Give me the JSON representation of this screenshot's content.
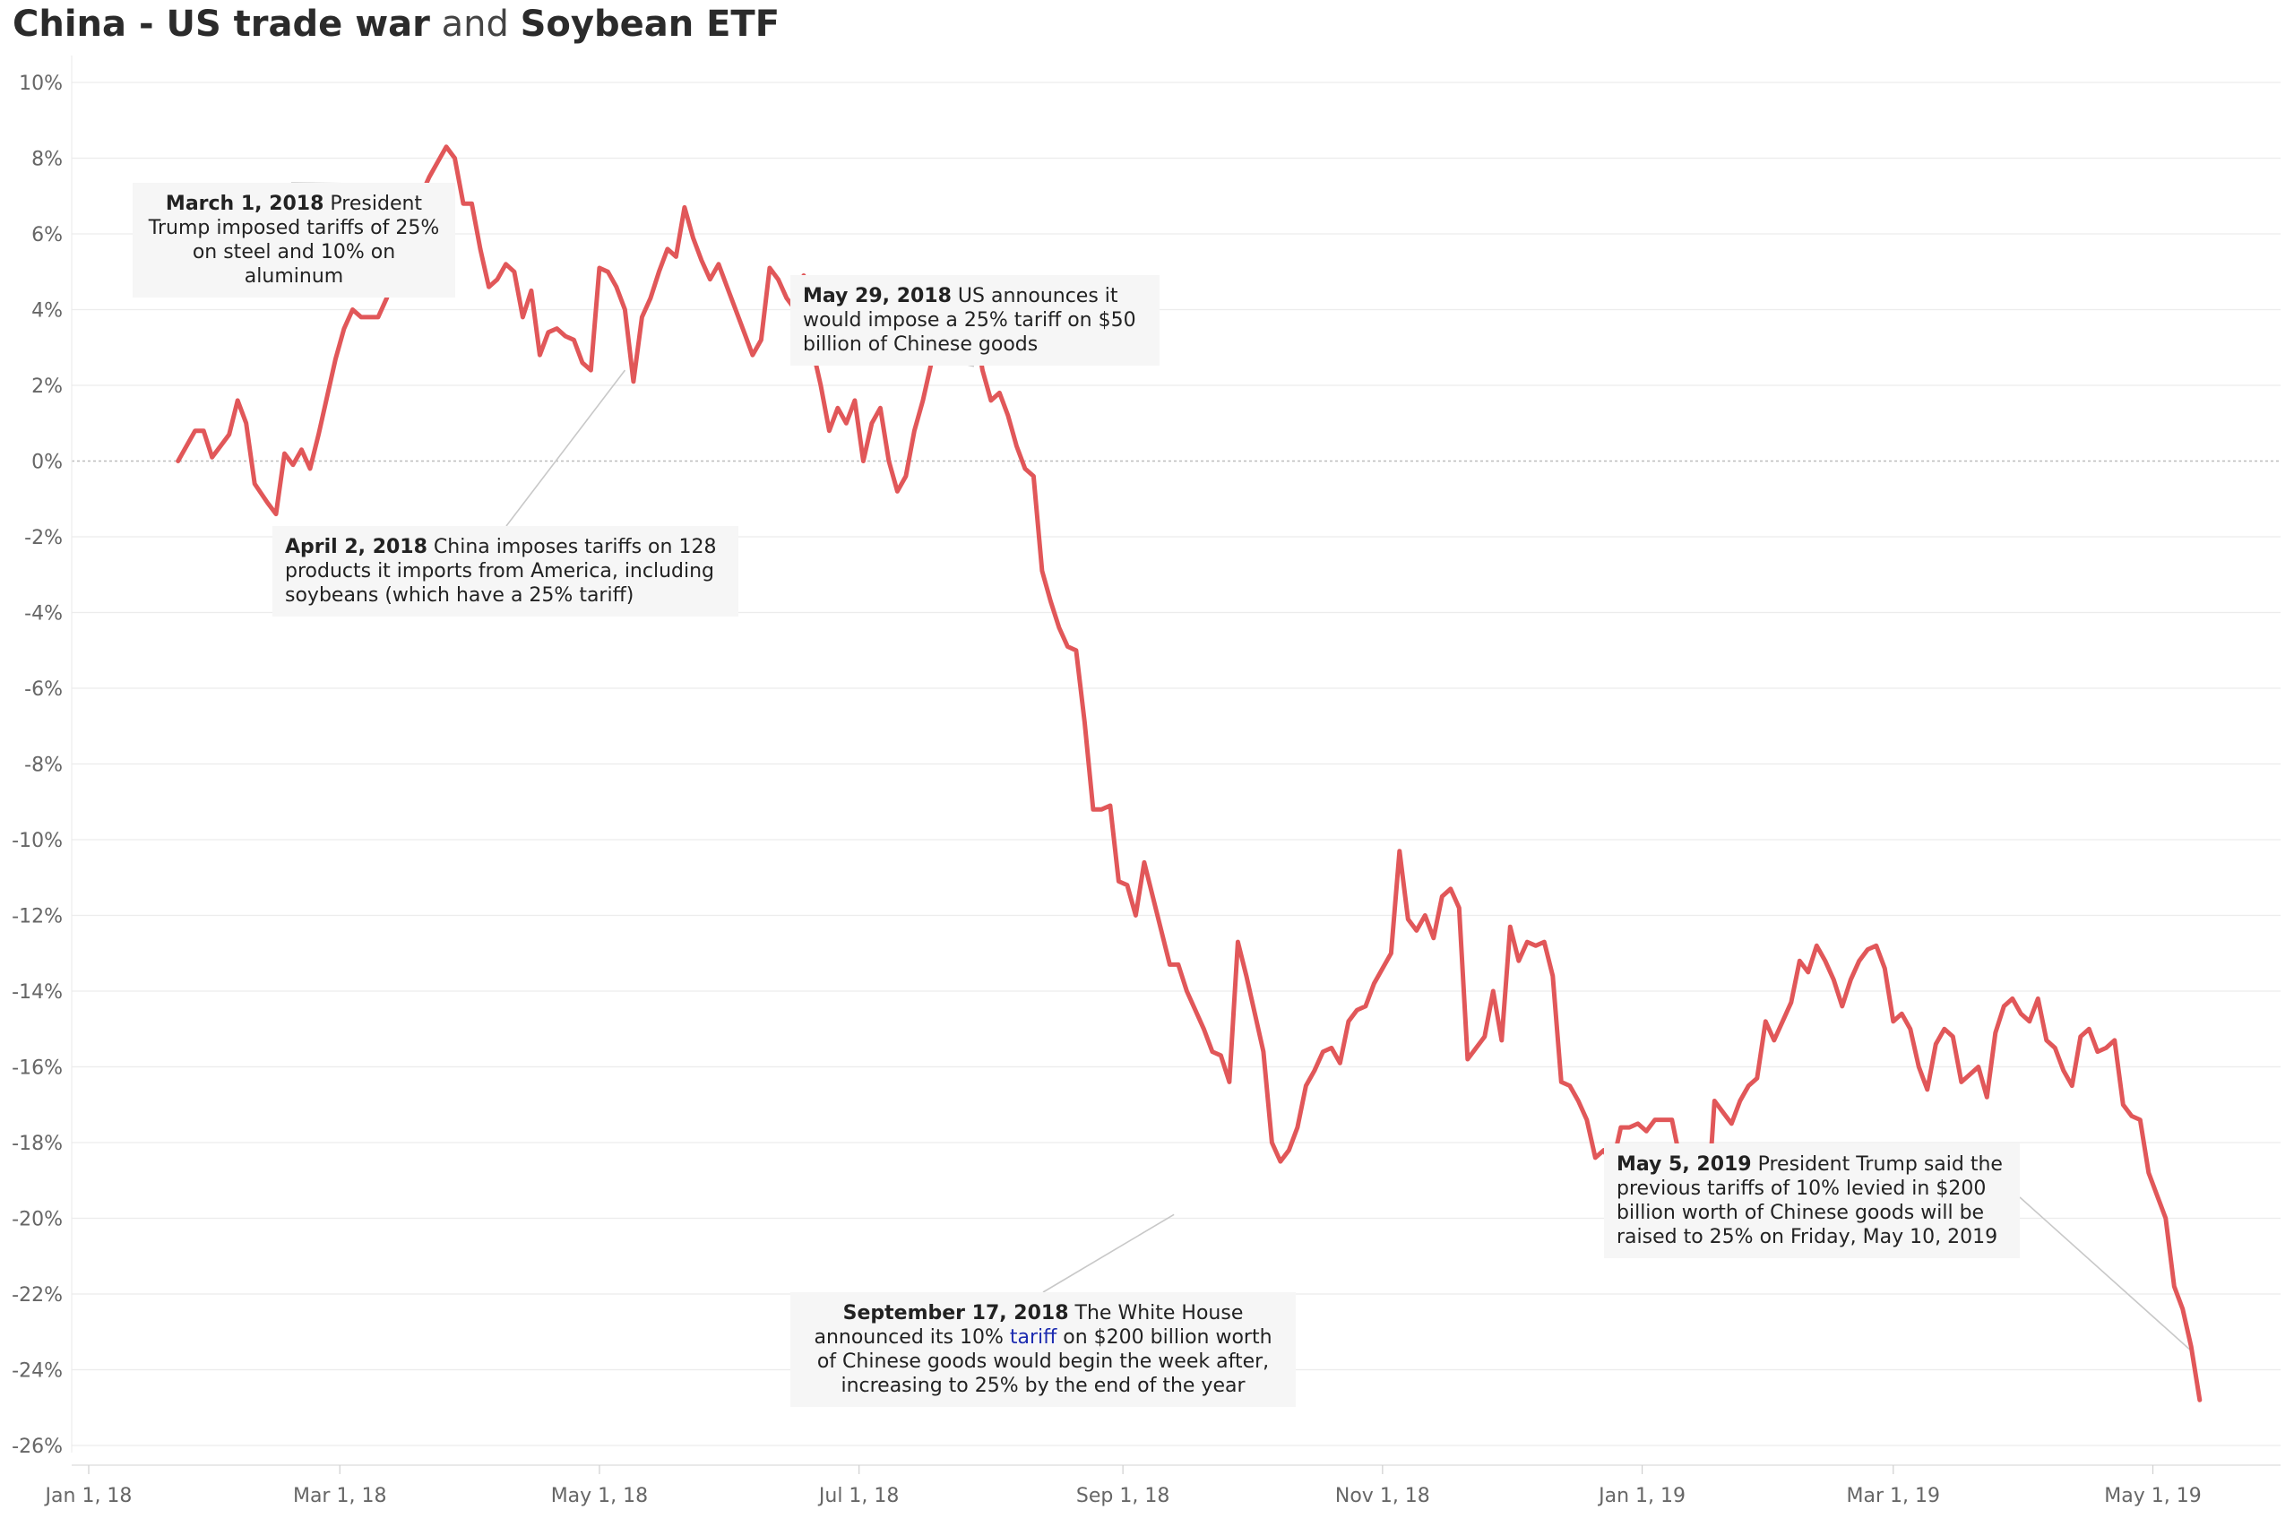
{
  "title": {
    "part1": "China - US trade war",
    "part2": " and ",
    "part3": "Soybean ETF"
  },
  "colors": {
    "line": "#e15759",
    "grid": "#ececec",
    "zero": "#bdbdbd",
    "annotation_bg": "#f6f6f6",
    "leader": "#c8c8c8"
  },
  "annotations": {
    "mar1": {
      "date": "March 1, 2018",
      "text": " President Trump imposed tariffs of 25% on steel and 10% on aluminum"
    },
    "apr2": {
      "date": "April 2, 2018",
      "text": " China imposes tariffs on 128 products it imports from America, including soybeans (which have a 25% tariff)"
    },
    "may29": {
      "date": "May 29, 2018",
      "text": " US announces it would impose a 25% tariff on $50 billion of Chinese goods"
    },
    "sep17": {
      "date": "September 17, 2018",
      "text1": "  The White House announced its 10% ",
      "link": "tariff",
      "text2": " on $200 billion worth of Chinese goods would begin the week after, increasing to 25% by the end of the year"
    },
    "may5": {
      "date": "May 5, 2019",
      "text": " President Trump said the previous tariffs of 10% levied in $200 billion worth of Chinese goods will be raised to 25% on Friday, May 10, 2019"
    }
  },
  "chart_data": {
    "type": "line",
    "title": "China - US trade war and Soybean ETF",
    "xlabel": "",
    "ylabel": "",
    "ylim": [
      -26,
      10
    ],
    "y_ticks": [
      "10%",
      "8%",
      "6%",
      "4%",
      "2%",
      "0%",
      "-2%",
      "-4%",
      "-6%",
      "-8%",
      "-10%",
      "-12%",
      "-14%",
      "-16%",
      "-18%",
      "-20%",
      "-22%",
      "-24%",
      "-26%"
    ],
    "x_ticks": [
      "Jan 1, 18",
      "Mar 1, 18",
      "May 1, 18",
      "Jul 1, 18",
      "Sep 1, 18",
      "Nov 1, 18",
      "Jan 1, 19",
      "Mar 1, 19",
      "May 1, 19"
    ],
    "x_range": [
      "2017-12-28",
      "2019-05-31"
    ],
    "grid": true,
    "reference_line": 0,
    "series": [
      {
        "values": [
          [
            "2018-01-22",
            0.0
          ],
          [
            "2018-01-24",
            0.4
          ],
          [
            "2018-01-26",
            0.8
          ],
          [
            "2018-01-28",
            0.8
          ],
          [
            "2018-01-30",
            0.1
          ],
          [
            "2018-02-01",
            0.4
          ],
          [
            "2018-02-03",
            0.7
          ],
          [
            "2018-02-05",
            1.6
          ],
          [
            "2018-02-07",
            1.0
          ],
          [
            "2018-02-09",
            -0.6
          ],
          [
            "2018-02-12",
            -1.1
          ],
          [
            "2018-02-14",
            -1.4
          ],
          [
            "2018-02-16",
            0.2
          ],
          [
            "2018-02-18",
            -0.1
          ],
          [
            "2018-02-20",
            0.3
          ],
          [
            "2018-02-22",
            -0.2
          ],
          [
            "2018-02-24",
            0.7
          ],
          [
            "2018-02-26",
            1.7
          ],
          [
            "2018-02-28",
            2.7
          ],
          [
            "2018-03-02",
            3.5
          ],
          [
            "2018-03-04",
            4.0
          ],
          [
            "2018-03-06",
            3.8
          ],
          [
            "2018-03-08",
            3.8
          ],
          [
            "2018-03-10",
            3.8
          ],
          [
            "2018-03-12",
            4.3
          ],
          [
            "2018-03-14",
            5.0
          ],
          [
            "2018-03-16",
            5.8
          ],
          [
            "2018-03-18",
            6.2
          ],
          [
            "2018-03-20",
            7.0
          ],
          [
            "2018-03-22",
            7.5
          ],
          [
            "2018-03-24",
            7.9
          ],
          [
            "2018-03-26",
            8.3
          ],
          [
            "2018-03-28",
            8.0
          ],
          [
            "2018-03-30",
            6.8
          ],
          [
            "2018-04-01",
            6.8
          ],
          [
            "2018-04-03",
            5.6
          ],
          [
            "2018-04-05",
            4.6
          ],
          [
            "2018-04-07",
            4.8
          ],
          [
            "2018-04-09",
            5.2
          ],
          [
            "2018-04-11",
            5.0
          ],
          [
            "2018-04-13",
            3.8
          ],
          [
            "2018-04-15",
            4.5
          ],
          [
            "2018-04-17",
            2.8
          ],
          [
            "2018-04-19",
            3.4
          ],
          [
            "2018-04-21",
            3.5
          ],
          [
            "2018-04-23",
            3.3
          ],
          [
            "2018-04-25",
            3.2
          ],
          [
            "2018-04-27",
            2.6
          ],
          [
            "2018-04-29",
            2.4
          ],
          [
            "2018-05-01",
            5.1
          ],
          [
            "2018-05-03",
            5.0
          ],
          [
            "2018-05-05",
            4.6
          ],
          [
            "2018-05-07",
            4.0
          ],
          [
            "2018-05-09",
            2.1
          ],
          [
            "2018-05-11",
            3.8
          ],
          [
            "2018-05-13",
            4.3
          ],
          [
            "2018-05-15",
            5.0
          ],
          [
            "2018-05-17",
            5.6
          ],
          [
            "2018-05-19",
            5.4
          ],
          [
            "2018-05-21",
            6.7
          ],
          [
            "2018-05-23",
            5.9
          ],
          [
            "2018-05-25",
            5.3
          ],
          [
            "2018-05-27",
            4.8
          ],
          [
            "2018-05-29",
            5.2
          ],
          [
            "2018-05-31",
            4.6
          ],
          [
            "2018-06-02",
            4.0
          ],
          [
            "2018-06-04",
            3.4
          ],
          [
            "2018-06-06",
            2.8
          ],
          [
            "2018-06-08",
            3.2
          ],
          [
            "2018-06-10",
            5.1
          ],
          [
            "2018-06-12",
            4.8
          ],
          [
            "2018-06-14",
            4.3
          ],
          [
            "2018-06-16",
            4.0
          ],
          [
            "2018-06-18",
            4.9
          ],
          [
            "2018-06-20",
            3.0
          ],
          [
            "2018-06-22",
            2.0
          ],
          [
            "2018-06-24",
            0.8
          ],
          [
            "2018-06-26",
            1.4
          ],
          [
            "2018-06-28",
            1.0
          ],
          [
            "2018-06-30",
            1.6
          ],
          [
            "2018-07-02",
            0.0
          ],
          [
            "2018-07-04",
            1.0
          ],
          [
            "2018-07-06",
            1.4
          ],
          [
            "2018-07-08",
            0.0
          ],
          [
            "2018-07-10",
            -0.8
          ],
          [
            "2018-07-12",
            -0.4
          ],
          [
            "2018-07-14",
            0.8
          ],
          [
            "2018-07-16",
            1.6
          ],
          [
            "2018-07-18",
            2.6
          ],
          [
            "2018-07-20",
            3.6
          ],
          [
            "2018-07-22",
            3.2
          ],
          [
            "2018-07-24",
            3.8
          ],
          [
            "2018-07-26",
            3.8
          ],
          [
            "2018-07-28",
            3.8
          ],
          [
            "2018-07-30",
            2.4
          ],
          [
            "2018-08-01",
            1.6
          ],
          [
            "2018-08-03",
            1.8
          ],
          [
            "2018-08-05",
            1.2
          ],
          [
            "2018-08-07",
            0.4
          ],
          [
            "2018-08-09",
            -0.2
          ],
          [
            "2018-08-11",
            -0.4
          ],
          [
            "2018-08-13",
            -2.9
          ],
          [
            "2018-08-15",
            -3.7
          ],
          [
            "2018-08-17",
            -4.4
          ],
          [
            "2018-08-19",
            -4.9
          ],
          [
            "2018-08-21",
            -5.0
          ],
          [
            "2018-08-23",
            -6.9
          ],
          [
            "2018-08-25",
            -9.2
          ],
          [
            "2018-08-27",
            -9.2
          ],
          [
            "2018-08-29",
            -9.1
          ],
          [
            "2018-08-31",
            -11.1
          ],
          [
            "2018-09-02",
            -11.2
          ],
          [
            "2018-09-04",
            -12.0
          ],
          [
            "2018-09-06",
            -10.6
          ],
          [
            "2018-09-08",
            -11.5
          ],
          [
            "2018-09-10",
            -12.4
          ],
          [
            "2018-09-12",
            -13.3
          ],
          [
            "2018-09-14",
            -13.3
          ],
          [
            "2018-09-16",
            -14.0
          ],
          [
            "2018-09-18",
            -14.5
          ],
          [
            "2018-09-20",
            -15.0
          ],
          [
            "2018-09-22",
            -15.6
          ],
          [
            "2018-09-24",
            -15.7
          ],
          [
            "2018-09-26",
            -16.4
          ],
          [
            "2018-09-28",
            -12.7
          ],
          [
            "2018-09-30",
            -13.6
          ],
          [
            "2018-10-02",
            -14.6
          ],
          [
            "2018-10-04",
            -15.6
          ],
          [
            "2018-10-06",
            -18.0
          ],
          [
            "2018-10-08",
            -18.5
          ],
          [
            "2018-10-10",
            -18.2
          ],
          [
            "2018-10-12",
            -17.6
          ],
          [
            "2018-10-14",
            -16.5
          ],
          [
            "2018-10-16",
            -16.1
          ],
          [
            "2018-10-18",
            -15.6
          ],
          [
            "2018-10-20",
            -15.5
          ],
          [
            "2018-10-22",
            -15.9
          ],
          [
            "2018-10-24",
            -14.8
          ],
          [
            "2018-10-26",
            -14.5
          ],
          [
            "2018-10-28",
            -14.4
          ],
          [
            "2018-10-30",
            -13.8
          ],
          [
            "2018-11-01",
            -13.4
          ],
          [
            "2018-11-03",
            -13.0
          ],
          [
            "2018-11-05",
            -10.3
          ],
          [
            "2018-11-07",
            -12.1
          ],
          [
            "2018-11-09",
            -12.4
          ],
          [
            "2018-11-11",
            -12.0
          ],
          [
            "2018-11-13",
            -12.6
          ],
          [
            "2018-11-15",
            -11.5
          ],
          [
            "2018-11-17",
            -11.3
          ],
          [
            "2018-11-19",
            -11.8
          ],
          [
            "2018-11-21",
            -15.8
          ],
          [
            "2018-11-23",
            -15.5
          ],
          [
            "2018-11-25",
            -15.2
          ],
          [
            "2018-11-27",
            -14.0
          ],
          [
            "2018-11-29",
            -15.3
          ],
          [
            "2018-12-01",
            -12.3
          ],
          [
            "2018-12-03",
            -13.2
          ],
          [
            "2018-12-05",
            -12.7
          ],
          [
            "2018-12-07",
            -12.8
          ],
          [
            "2018-12-09",
            -12.7
          ],
          [
            "2018-12-11",
            -13.6
          ],
          [
            "2018-12-13",
            -16.4
          ],
          [
            "2018-12-15",
            -16.5
          ],
          [
            "2018-12-17",
            -16.9
          ],
          [
            "2018-12-19",
            -17.4
          ],
          [
            "2018-12-21",
            -18.4
          ],
          [
            "2018-12-23",
            -18.2
          ],
          [
            "2018-12-25",
            -18.6
          ],
          [
            "2018-12-27",
            -17.6
          ],
          [
            "2018-12-29",
            -17.6
          ],
          [
            "2018-12-31",
            -17.5
          ],
          [
            "2019-01-02",
            -17.7
          ],
          [
            "2019-01-04",
            -17.4
          ],
          [
            "2019-01-06",
            -17.4
          ],
          [
            "2019-01-08",
            -17.4
          ],
          [
            "2019-01-10",
            -18.5
          ],
          [
            "2019-01-12",
            -18.9
          ],
          [
            "2019-01-14",
            -19.4
          ],
          [
            "2019-01-16",
            -20.3
          ],
          [
            "2019-01-18",
            -16.9
          ],
          [
            "2019-01-20",
            -17.2
          ],
          [
            "2019-01-22",
            -17.5
          ],
          [
            "2019-01-24",
            -16.9
          ],
          [
            "2019-01-26",
            -16.5
          ],
          [
            "2019-01-28",
            -16.3
          ],
          [
            "2019-01-30",
            -14.8
          ],
          [
            "2019-02-01",
            -15.3
          ],
          [
            "2019-02-03",
            -14.8
          ],
          [
            "2019-02-05",
            -14.3
          ],
          [
            "2019-02-07",
            -13.2
          ],
          [
            "2019-02-09",
            -13.5
          ],
          [
            "2019-02-11",
            -12.8
          ],
          [
            "2019-02-13",
            -13.2
          ],
          [
            "2019-02-15",
            -13.7
          ],
          [
            "2019-02-17",
            -14.4
          ],
          [
            "2019-02-19",
            -13.7
          ],
          [
            "2019-02-21",
            -13.2
          ],
          [
            "2019-02-23",
            -12.9
          ],
          [
            "2019-02-25",
            -12.8
          ],
          [
            "2019-02-27",
            -13.4
          ],
          [
            "2019-03-01",
            -14.8
          ],
          [
            "2019-03-03",
            -14.6
          ],
          [
            "2019-03-05",
            -15.0
          ],
          [
            "2019-03-07",
            -16.0
          ],
          [
            "2019-03-09",
            -16.6
          ],
          [
            "2019-03-11",
            -15.4
          ],
          [
            "2019-03-13",
            -15.0
          ],
          [
            "2019-03-15",
            -15.2
          ],
          [
            "2019-03-17",
            -16.4
          ],
          [
            "2019-03-19",
            -16.2
          ],
          [
            "2019-03-21",
            -16.0
          ],
          [
            "2019-03-23",
            -16.8
          ],
          [
            "2019-03-25",
            -15.1
          ],
          [
            "2019-03-27",
            -14.4
          ],
          [
            "2019-03-29",
            -14.2
          ],
          [
            "2019-03-31",
            -14.6
          ],
          [
            "2019-04-02",
            -14.8
          ],
          [
            "2019-04-04",
            -14.2
          ],
          [
            "2019-04-06",
            -15.3
          ],
          [
            "2019-04-08",
            -15.5
          ],
          [
            "2019-04-10",
            -16.1
          ],
          [
            "2019-04-12",
            -16.5
          ],
          [
            "2019-04-14",
            -15.2
          ],
          [
            "2019-04-16",
            -15.0
          ],
          [
            "2019-04-18",
            -15.6
          ],
          [
            "2019-04-20",
            -15.5
          ],
          [
            "2019-04-22",
            -15.3
          ],
          [
            "2019-04-24",
            -17.0
          ],
          [
            "2019-04-26",
            -17.3
          ],
          [
            "2019-04-28",
            -17.4
          ],
          [
            "2019-04-30",
            -18.8
          ],
          [
            "2019-05-02",
            -19.4
          ],
          [
            "2019-05-04",
            -20.0
          ],
          [
            "2019-05-06",
            -21.8
          ],
          [
            "2019-05-08",
            -22.4
          ],
          [
            "2019-05-10",
            -23.4
          ],
          [
            "2019-05-12",
            -24.8
          ]
        ]
      }
    ]
  }
}
